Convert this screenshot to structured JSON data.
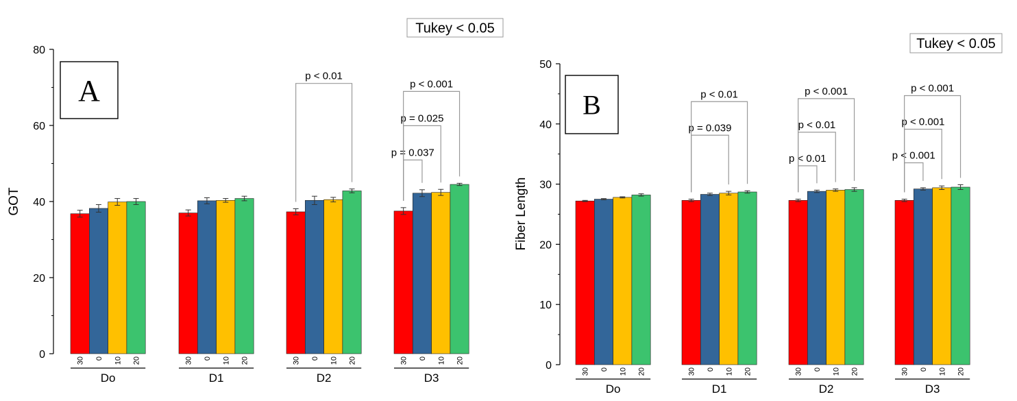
{
  "colors": {
    "30": "#ff0000",
    "0": "#336699",
    "10": "#ffc000",
    "20": "#3cc36e"
  },
  "chart_data": [
    {
      "type": "bar",
      "panel_label": "A",
      "tukey_label": "Tukey < 0.05",
      "ylabel": "GOT",
      "xlabel": "",
      "ylim": [
        0,
        80
      ],
      "yticks": [
        "0",
        "20",
        "40",
        "60",
        "80"
      ],
      "groups": [
        "Do",
        "D1",
        "D2",
        "D3"
      ],
      "doses": [
        "30",
        "0",
        "10",
        "20"
      ],
      "series": [
        {
          "name": "30",
          "values": [
            36.8,
            37.0,
            37.3,
            37.5
          ],
          "errors": [
            0.9,
            0.8,
            0.8,
            0.9
          ]
        },
        {
          "name": "0",
          "values": [
            38.2,
            40.2,
            40.3,
            42.2
          ],
          "errors": [
            1.0,
            0.8,
            1.1,
            0.9
          ]
        },
        {
          "name": "10",
          "values": [
            39.9,
            40.3,
            40.5,
            42.4
          ],
          "errors": [
            0.9,
            0.5,
            0.6,
            0.8
          ]
        },
        {
          "name": "20",
          "values": [
            40.0,
            40.8,
            42.8,
            44.5
          ],
          "errors": [
            0.8,
            0.6,
            0.5,
            0.3
          ]
        }
      ],
      "annotations": [
        {
          "group": 2,
          "bars": [
            0,
            3
          ],
          "text": "p < 0.01"
        },
        {
          "group": 3,
          "bars": [
            0,
            1
          ],
          "text": "p = 0.037"
        },
        {
          "group": 3,
          "bars": [
            0,
            2
          ],
          "text": "p = 0.025"
        },
        {
          "group": 3,
          "bars": [
            0,
            3
          ],
          "text": "p < 0.001"
        }
      ]
    },
    {
      "type": "bar",
      "panel_label": "B",
      "tukey_label": "Tukey < 0.05",
      "ylabel": "Fiber Length",
      "xlabel": "",
      "ylim": [
        0,
        50
      ],
      "yticks": [
        "0",
        "10",
        "20",
        "30",
        "40",
        "50"
      ],
      "groups": [
        "Do",
        "D1",
        "D2",
        "D3"
      ],
      "doses": [
        "30",
        "0",
        "10",
        "20"
      ],
      "series": [
        {
          "name": "30",
          "values": [
            27.2,
            27.3,
            27.3,
            27.3
          ],
          "errors": [
            0.1,
            0.2,
            0.2,
            0.2
          ]
        },
        {
          "name": "0",
          "values": [
            27.5,
            28.3,
            28.8,
            29.2
          ],
          "errors": [
            0.1,
            0.2,
            0.2,
            0.2
          ]
        },
        {
          "name": "10",
          "values": [
            27.8,
            28.5,
            29.0,
            29.4
          ],
          "errors": [
            0.1,
            0.3,
            0.2,
            0.3
          ]
        },
        {
          "name": "20",
          "values": [
            28.2,
            28.7,
            29.1,
            29.5
          ],
          "errors": [
            0.2,
            0.2,
            0.3,
            0.4
          ]
        }
      ],
      "annotations": [
        {
          "group": 1,
          "bars": [
            0,
            2
          ],
          "text": "p = 0.039"
        },
        {
          "group": 1,
          "bars": [
            0,
            3
          ],
          "text": "p < 0.01"
        },
        {
          "group": 2,
          "bars": [
            0,
            1
          ],
          "text": "p < 0.01"
        },
        {
          "group": 2,
          "bars": [
            0,
            2
          ],
          "text": "p < 0.01"
        },
        {
          "group": 2,
          "bars": [
            0,
            3
          ],
          "text": "p < 0.001"
        },
        {
          "group": 3,
          "bars": [
            0,
            1
          ],
          "text": "p < 0.001"
        },
        {
          "group": 3,
          "bars": [
            0,
            2
          ],
          "text": "p < 0.001"
        },
        {
          "group": 3,
          "bars": [
            0,
            3
          ],
          "text": "p < 0.001"
        }
      ]
    }
  ]
}
